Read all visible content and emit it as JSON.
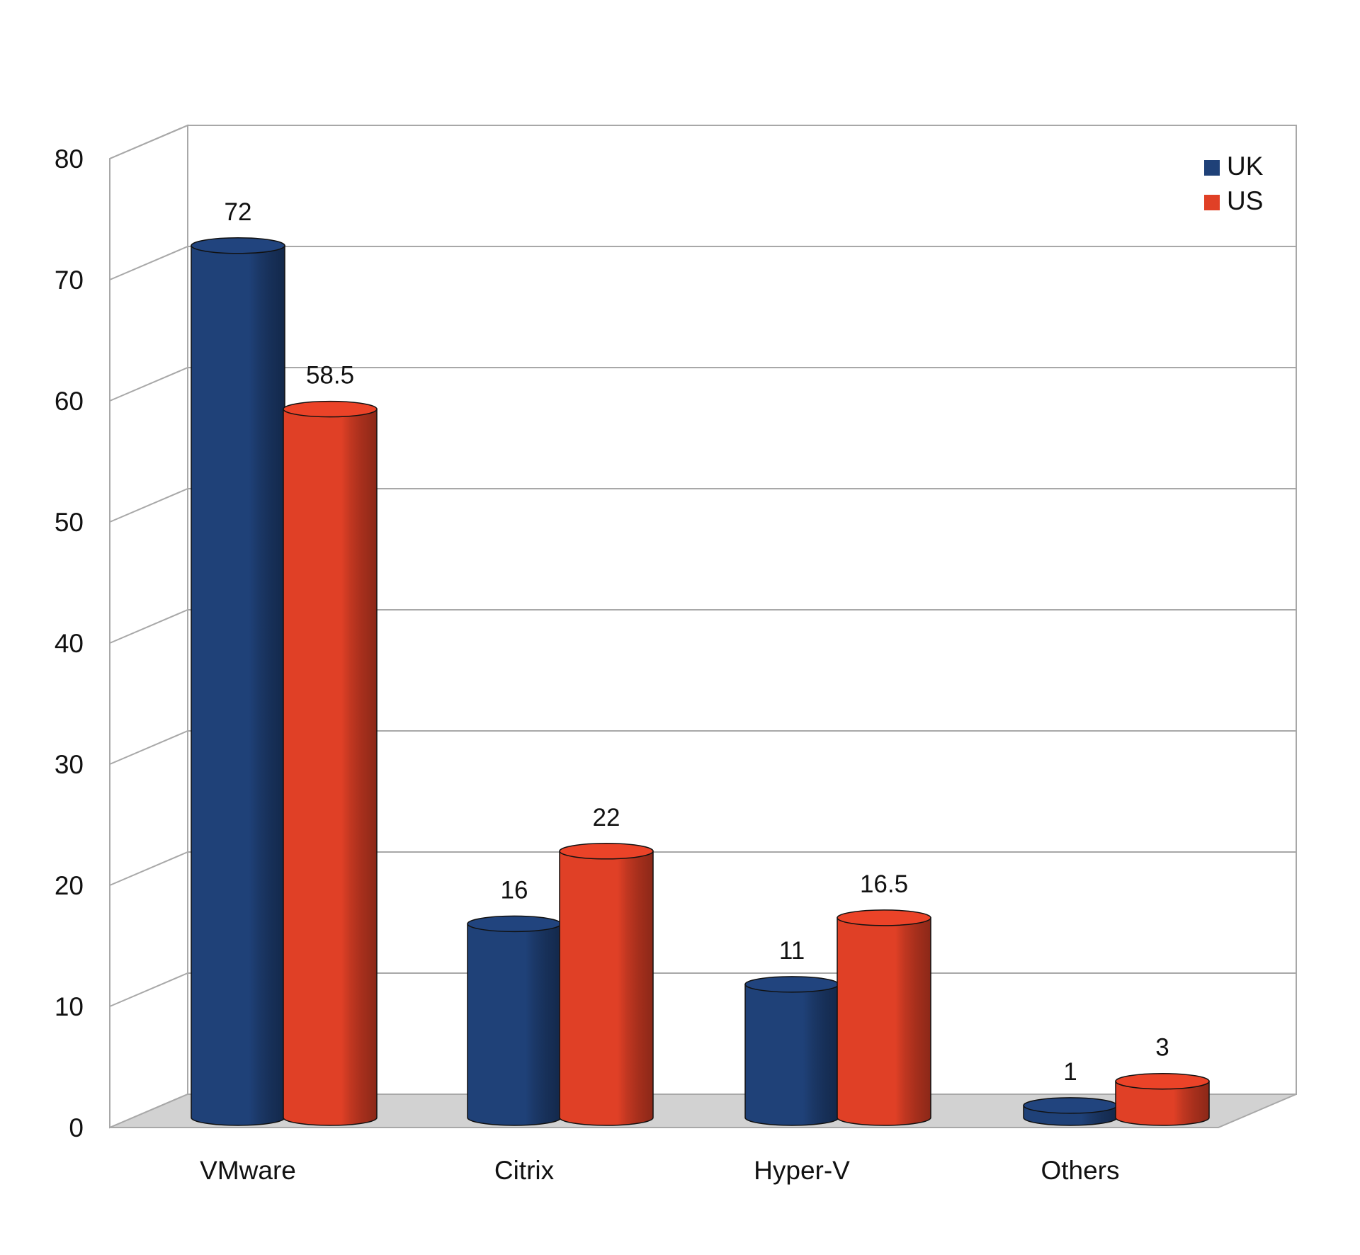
{
  "chart_data": {
    "type": "bar",
    "style": "3d-cylinder",
    "categories": [
      "VMware",
      "Citrix",
      "Hyper-V",
      "Others"
    ],
    "series": [
      {
        "name": "UK",
        "color": "#1f4178",
        "values": [
          72,
          16,
          11,
          1
        ]
      },
      {
        "name": "US",
        "color": "#e04026",
        "values": [
          58.5,
          22,
          16.5,
          3
        ]
      }
    ],
    "yticks": [
      "0",
      "10",
      "20",
      "30",
      "40",
      "50",
      "60",
      "70",
      "80"
    ],
    "ylim": [
      0,
      80
    ],
    "grid": true,
    "legend_position": "top-right",
    "title": "",
    "xlabel": "",
    "ylabel": ""
  }
}
